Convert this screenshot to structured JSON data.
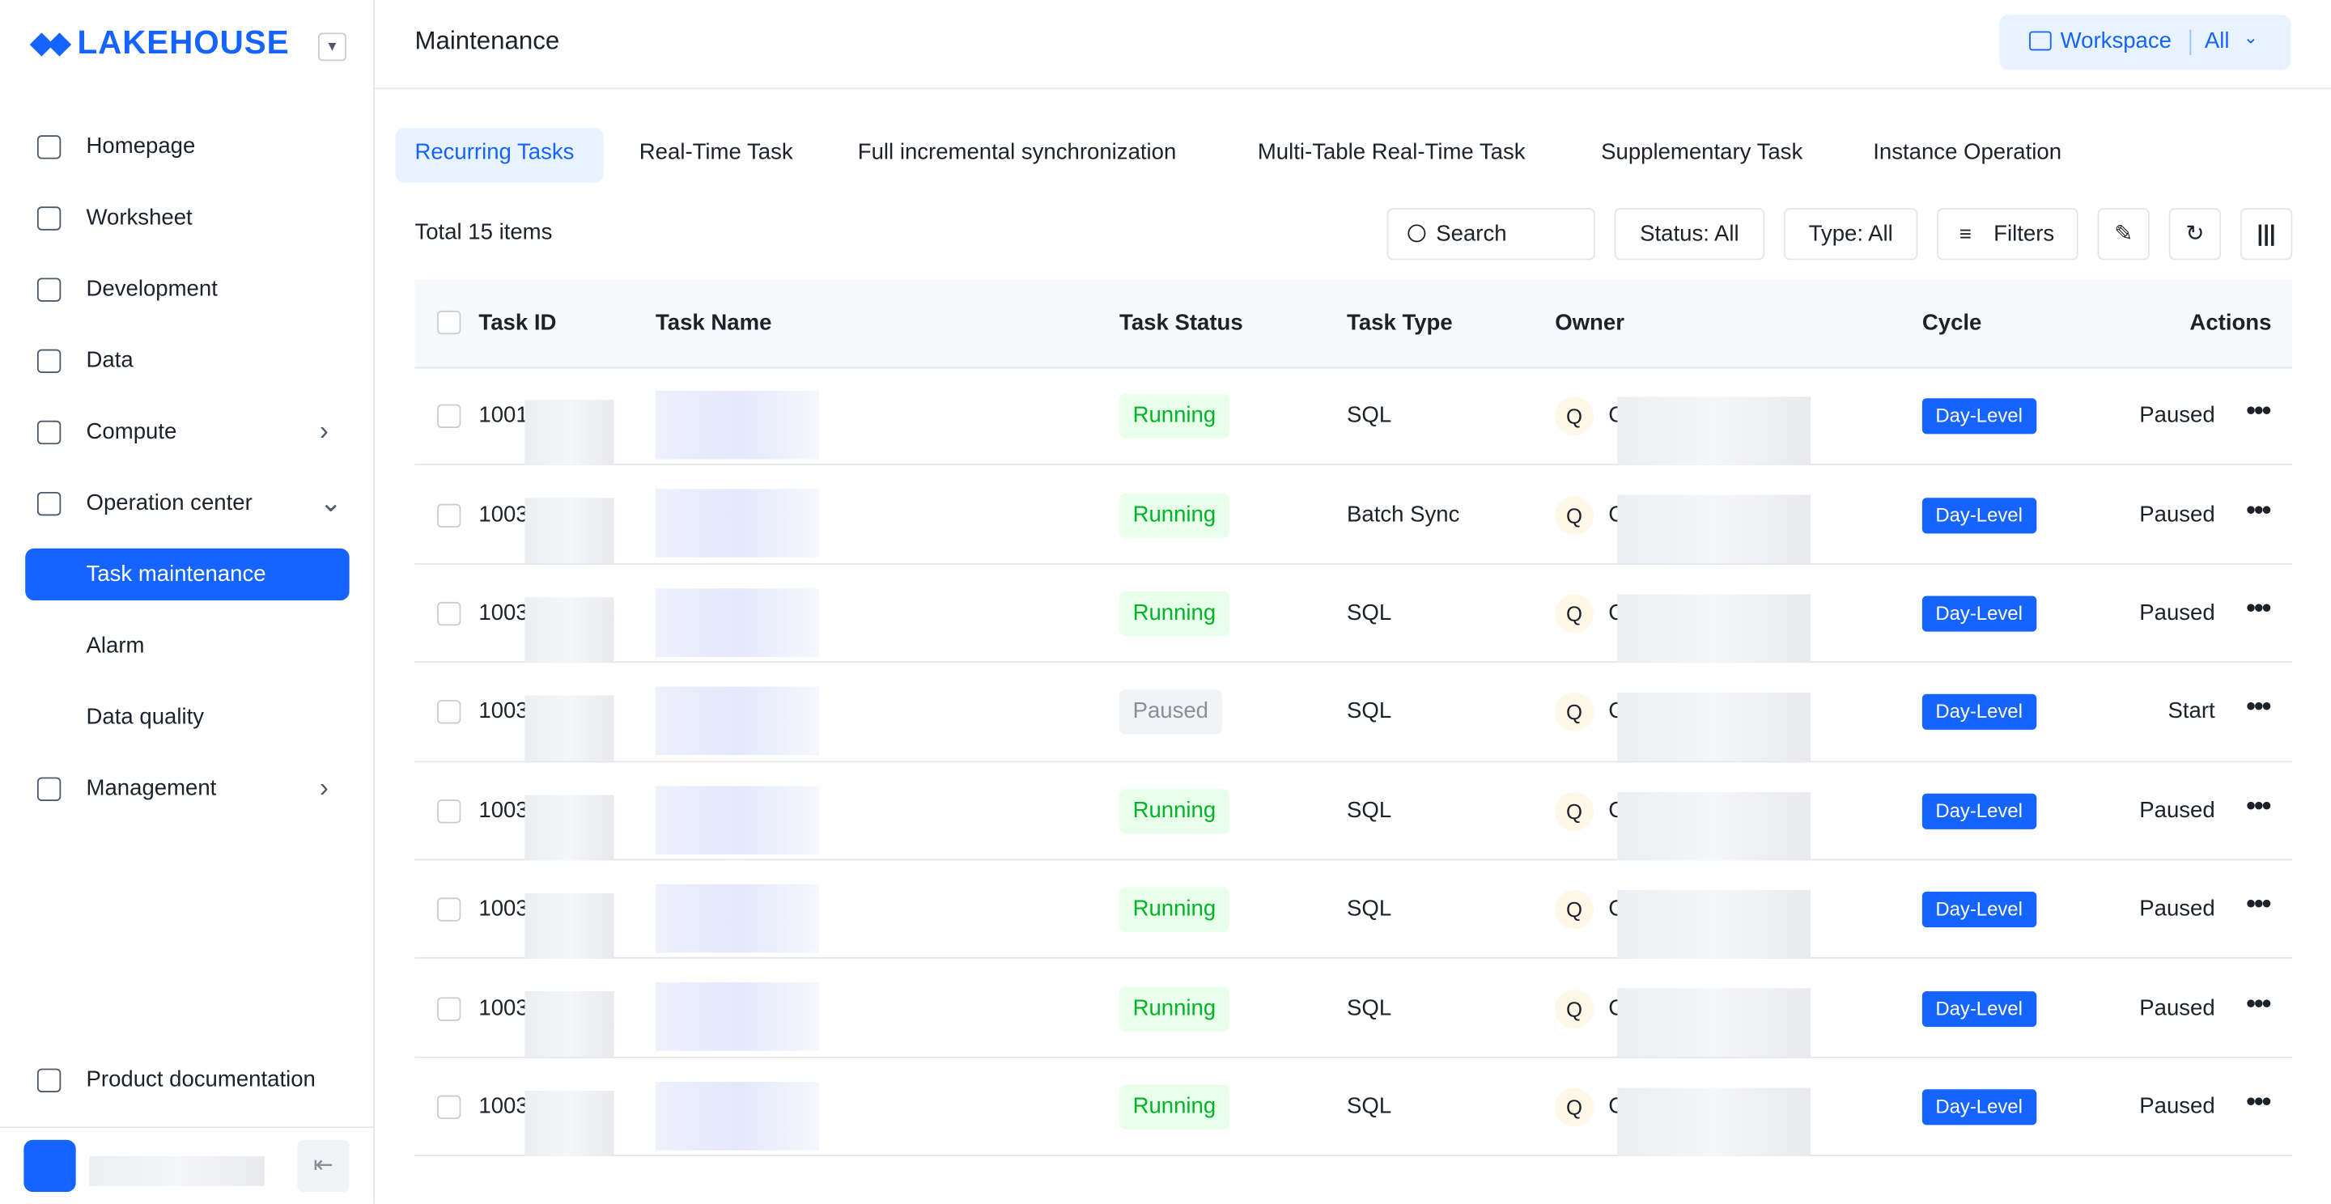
{
  "sidebar": {
    "logo": "LAKEHOUSE",
    "nav": [
      "Homepage",
      "Worksheet",
      "Development",
      "Data",
      "Compute",
      "Operation center",
      "Task maintenance",
      "Alarm",
      "Data quality",
      "Management"
    ],
    "footer": "Product documentation"
  },
  "header": {
    "title": "Maintenance",
    "workspace_label": "Workspace",
    "workspace_value": "All"
  },
  "tabs": [
    "Recurring Tasks",
    "Real-Time Task",
    "Full incremental synchronization",
    "Multi-Table Real-Time Task",
    "Supplementary Task",
    "Instance Operation"
  ],
  "toolbar": {
    "total": "Total 15 items",
    "search": "Search",
    "status_filter": "Status: All",
    "type_filter": "Type: All",
    "filters": "Filters"
  },
  "table": {
    "columns": [
      "Task ID",
      "Task Name",
      "Task Status",
      "Task Type",
      "Owner",
      "Cycle",
      "Actions"
    ],
    "rows": [
      [
        "1001",
        "Running",
        "SQL",
        "Q",
        "C",
        "Day-Level",
        "Paused"
      ],
      [
        "1003",
        "Running",
        "Batch Sync",
        "Q",
        "C",
        "Day-Level",
        "Paused"
      ],
      [
        "1003",
        "Running",
        "SQL",
        "Q",
        "C",
        "Day-Level",
        "Paused"
      ],
      [
        "1003",
        "Paused",
        "SQL",
        "Q",
        "C",
        "Day-Level",
        "Start"
      ],
      [
        "1003",
        "Running",
        "SQL",
        "Q",
        "C",
        "Day-Level",
        "Paused"
      ],
      [
        "1003",
        "Running",
        "SQL",
        "Q",
        "C",
        "Day-Level",
        "Paused"
      ],
      [
        "1003",
        "Running",
        "SQL",
        "Q",
        "C",
        "Day-Level",
        "Paused"
      ],
      [
        "1003",
        "Running",
        "SQL",
        "Q",
        "C",
        "Day-Level",
        "Paused"
      ]
    ]
  }
}
